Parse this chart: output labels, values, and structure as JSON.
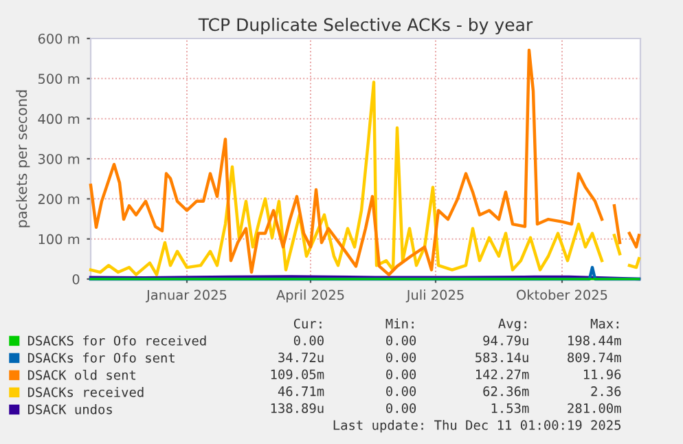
{
  "chart_data": {
    "type": "line",
    "title": "TCP Duplicate Selective ACKs - by year",
    "ylabel": "packets per second",
    "xlim": [
      "2024-11-06",
      "2025-12-11"
    ],
    "xticks": [
      {
        "value": "2025-01-15",
        "label": "Januar 2025"
      },
      {
        "value": "2025-04-15",
        "label": "April 2025"
      },
      {
        "value": "2025-07-15",
        "label": "Juli 2025"
      },
      {
        "value": "2025-10-15",
        "label": "Oktober 2025"
      }
    ],
    "ylim": [
      0,
      600
    ],
    "yticks": [
      0,
      {
        "value": 100,
        "label": "100 m"
      },
      {
        "value": 200,
        "label": "200 m"
      },
      {
        "value": 300,
        "label": "300 m"
      },
      {
        "value": 400,
        "label": "400 m"
      },
      {
        "value": 500,
        "label": "500 m"
      },
      {
        "value": 600,
        "label": "600 m"
      }
    ],
    "grid": true,
    "legend": "bottom",
    "series": [
      {
        "name": "DSACKS for Ofo received",
        "color": "#00cc00",
        "x": [
          "2024-11-06",
          "2025-12-10"
        ],
        "values": [
          0,
          0
        ]
      },
      {
        "name": "DSACKs for Ofo sent",
        "color": "#0066b3",
        "x": [
          "2024-11-06",
          "2025-11-04",
          "2025-11-06",
          "2025-11-08",
          "2025-12-10"
        ],
        "values": [
          0,
          0,
          29,
          0,
          0
        ]
      },
      {
        "name": "DSACK old sent",
        "color": "#ff8000",
        "x": [
          "2024-11-06",
          "2024-11-10",
          "2024-11-14",
          "2024-11-23",
          "2024-11-27",
          "2024-11-30",
          "2024-12-04",
          "2024-12-09",
          "2024-12-16",
          "2024-12-23",
          "2024-12-28",
          "2024-12-31",
          "2025-01-03",
          "2025-01-08",
          "2025-01-15",
          "2025-01-22",
          "2025-01-27",
          "2025-02-01",
          "2025-02-06",
          "2025-02-12",
          "2025-02-16",
          "2025-02-21",
          "2025-02-27",
          "2025-03-03",
          "2025-03-08",
          "2025-03-13",
          "2025-03-19",
          "2025-03-26",
          "2025-03-31",
          "2025-04-05",
          "2025-04-10",
          "2025-04-15",
          "2025-04-19",
          "2025-04-23",
          "2025-04-28",
          "2025-05-08",
          "2025-05-18",
          "2025-05-25",
          "2025-05-30",
          "2025-06-04",
          "2025-06-11",
          "2025-06-17",
          "2025-06-27",
          "2025-07-07",
          "2025-07-12",
          "2025-07-17",
          "2025-07-24",
          "2025-07-31",
          "2025-08-06",
          "2025-08-11",
          "2025-08-16",
          "2025-08-23",
          "2025-08-30",
          "2025-09-04",
          "2025-09-09",
          "2025-09-18",
          "2025-09-21",
          "2025-09-24",
          "2025-09-27",
          "2025-10-05",
          "2025-10-15",
          "2025-10-22",
          "2025-10-27",
          "2025-11-01",
          "2025-11-08",
          "2025-11-13",
          "2025-11-17",
          "2025-11-22",
          "2025-11-26",
          "2025-11-29",
          "2025-12-03",
          "2025-12-08",
          "2025-12-10"
        ],
        "values": [
          234,
          129,
          194,
          286,
          240,
          149,
          183,
          160,
          194,
          131,
          120,
          263,
          251,
          194,
          171,
          194,
          194,
          263,
          206,
          349,
          46,
          91,
          126,
          17,
          114,
          114,
          171,
          80,
          149,
          206,
          114,
          80,
          223,
          91,
          126,
          80,
          32,
          126,
          206,
          32,
          11,
          32,
          57,
          80,
          23,
          171,
          149,
          200,
          263,
          217,
          160,
          171,
          149,
          217,
          137,
          131,
          571,
          469,
          137,
          149,
          143,
          137,
          263,
          229,
          194,
          149,
          null,
          183,
          91,
          null,
          114,
          80,
          109
        ]
      },
      {
        "name": "DSACKs received",
        "color": "#ffcc00",
        "x": [
          "2024-11-06",
          "2024-11-13",
          "2024-11-19",
          "2024-11-26",
          "2024-12-04",
          "2024-12-09",
          "2024-12-19",
          "2024-12-24",
          "2024-12-30",
          "2025-01-03",
          "2025-01-08",
          "2025-01-15",
          "2025-01-25",
          "2025-02-01",
          "2025-02-06",
          "2025-02-12",
          "2025-02-17",
          "2025-02-22",
          "2025-02-27",
          "2025-03-04",
          "2025-03-09",
          "2025-03-13",
          "2025-03-18",
          "2025-03-23",
          "2025-03-28",
          "2025-04-02",
          "2025-04-07",
          "2025-04-12",
          "2025-04-18",
          "2025-04-25",
          "2025-05-02",
          "2025-05-05",
          "2025-05-12",
          "2025-05-17",
          "2025-05-22",
          "2025-05-27",
          "2025-05-31",
          "2025-06-02",
          "2025-06-09",
          "2025-06-14",
          "2025-06-17",
          "2025-06-21",
          "2025-06-26",
          "2025-07-01",
          "2025-07-07",
          "2025-07-13",
          "2025-07-17",
          "2025-07-27",
          "2025-08-06",
          "2025-08-11",
          "2025-08-16",
          "2025-08-23",
          "2025-08-30",
          "2025-09-04",
          "2025-09-09",
          "2025-09-15",
          "2025-09-22",
          "2025-09-29",
          "2025-10-05",
          "2025-10-12",
          "2025-10-19",
          "2025-10-27",
          "2025-11-01",
          "2025-11-06",
          "2025-11-13",
          "2025-11-17",
          "2025-11-22",
          "2025-11-26",
          "2025-11-29",
          "2025-12-03",
          "2025-12-08",
          "2025-12-10"
        ],
        "values": [
          23,
          17,
          34,
          17,
          29,
          11,
          40,
          11,
          91,
          34,
          69,
          29,
          34,
          69,
          34,
          137,
          280,
          103,
          194,
          80,
          149,
          200,
          103,
          194,
          23,
          91,
          160,
          57,
          103,
          160,
          57,
          34,
          126,
          80,
          171,
          343,
          491,
          34,
          46,
          23,
          377,
          46,
          126,
          34,
          80,
          229,
          34,
          23,
          34,
          126,
          46,
          103,
          57,
          114,
          23,
          46,
          103,
          23,
          57,
          114,
          46,
          137,
          80,
          114,
          46,
          null,
          109,
          63,
          null,
          34,
          29,
          51
        ]
      },
      {
        "name": "DSACK undos",
        "color": "#330099",
        "x": [
          "2024-11-06",
          "2024-12-15",
          "2025-02-15",
          "2025-04-01",
          "2025-06-01",
          "2025-08-01",
          "2025-09-25",
          "2025-10-20",
          "2025-12-10"
        ],
        "values": [
          4,
          3,
          5,
          6,
          4,
          4,
          5,
          5,
          0
        ]
      }
    ],
    "annotations": [
      "Cur:",
      "Min:",
      "Avg:",
      "Max:",
      "0.00",
      "0.00",
      "94.79u",
      "198.44m",
      "34.72u",
      "0.00",
      "583.14u",
      "809.74m",
      "109.05m",
      "0.00",
      "142.27m",
      "11.96",
      "46.71m",
      "0.00",
      "62.36m",
      "2.36",
      "138.89u",
      "0.00",
      "1.53m",
      "281.00m",
      "Last update: Thu Dec 11 01:00:19 2025"
    ]
  }
}
